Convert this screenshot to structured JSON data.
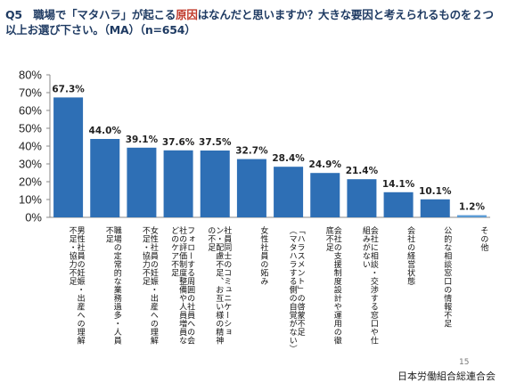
{
  "question": {
    "part1": "Q5　職場で「マタハラ」が起こる",
    "highlight": "原因",
    "part2": "はなんだと思いますか？大きな要因と考えられるものを２つ以上お選び下さい。（MA）（n=654）"
  },
  "colors": {
    "bar": "#2e6fb5",
    "last_bar": "#5b9bd5",
    "highlight": "#c0392b"
  },
  "chart_data": {
    "type": "bar",
    "categories": [
      "男性社員の妊娠・出産への理解不足・協力不足",
      "職場の定常的な業務過多・人員不足",
      "女性社員の妊娠・出産への理解不足・協力不足",
      "フォローする周囲の社員への会社の評価制度整備や人員増員などのケア不足",
      "社員同士のコミュニケーション・配慮不足、お互い様の精神の不足",
      "女性社員の妬み",
      "「ハラスメント」の啓蒙不足（マタハラする側の自覚がない）",
      "会社の支援制度設計や運用の徹底不足",
      "会社に相談・交渉する窓口や仕組みがない",
      "会社の経営状態",
      "公的な相談窓口の情報不足",
      "その他"
    ],
    "values": [
      67.3,
      44.0,
      39.1,
      37.6,
      37.5,
      32.7,
      28.4,
      24.9,
      21.4,
      14.1,
      10.1,
      1.2
    ],
    "value_labels": [
      "67.3%",
      "44.0%",
      "39.1%",
      "37.6%",
      "37.5%",
      "32.7%",
      "28.4%",
      "24.9%",
      "21.4%",
      "14.1%",
      "10.1%",
      "1.2%"
    ],
    "yticks": [
      "0%",
      "10%",
      "20%",
      "30%",
      "40%",
      "50%",
      "60%",
      "70%",
      "80%"
    ],
    "ylim": [
      0,
      80
    ],
    "grid": false
  },
  "page_number": "15",
  "footer": "日本労働組合総連合会"
}
